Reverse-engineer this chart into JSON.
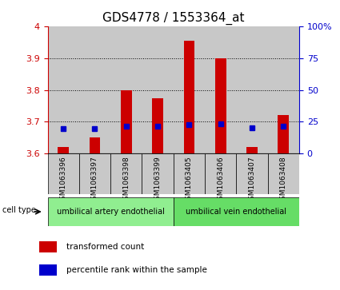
{
  "title": "GDS4778 / 1553364_at",
  "samples": [
    "GSM1063396",
    "GSM1063397",
    "GSM1063398",
    "GSM1063399",
    "GSM1063405",
    "GSM1063406",
    "GSM1063407",
    "GSM1063408"
  ],
  "red_values": [
    3.62,
    3.652,
    3.8,
    3.775,
    3.955,
    3.9,
    3.62,
    3.72
  ],
  "blue_values": [
    19.5,
    19.5,
    21.5,
    21.5,
    22.5,
    23.5,
    20.5,
    21.5
  ],
  "ylim_left": [
    3.6,
    4.0
  ],
  "ylim_right": [
    0,
    100
  ],
  "yticks_left": [
    3.6,
    3.7,
    3.8,
    3.9,
    4.0
  ],
  "ytick_labels_left": [
    "3.6",
    "3.7",
    "3.8",
    "3.9",
    "4"
  ],
  "yticks_right": [
    0,
    25,
    50,
    75,
    100
  ],
  "ytick_labels_right": [
    "0",
    "25",
    "50",
    "75",
    "100%"
  ],
  "cell_types": [
    {
      "label": "umbilical artery endothelial",
      "start": 0,
      "end": 4,
      "color": "#90EE90"
    },
    {
      "label": "umbilical vein endothelial",
      "start": 4,
      "end": 8,
      "color": "#66DD66"
    }
  ],
  "cell_type_label": "cell type",
  "legend_items": [
    {
      "color": "#CC0000",
      "label": "transformed count"
    },
    {
      "color": "#0000CC",
      "label": "percentile rank within the sample"
    }
  ],
  "bar_color": "#CC0000",
  "dot_color": "#0000CC",
  "bar_width": 0.35,
  "baseline": 3.6,
  "left_tick_color": "#CC0000",
  "right_tick_color": "#0000CC",
  "title_fontsize": 11,
  "col_bg_color": "#C8C8C8",
  "plot_bg_color": "#FFFFFF"
}
